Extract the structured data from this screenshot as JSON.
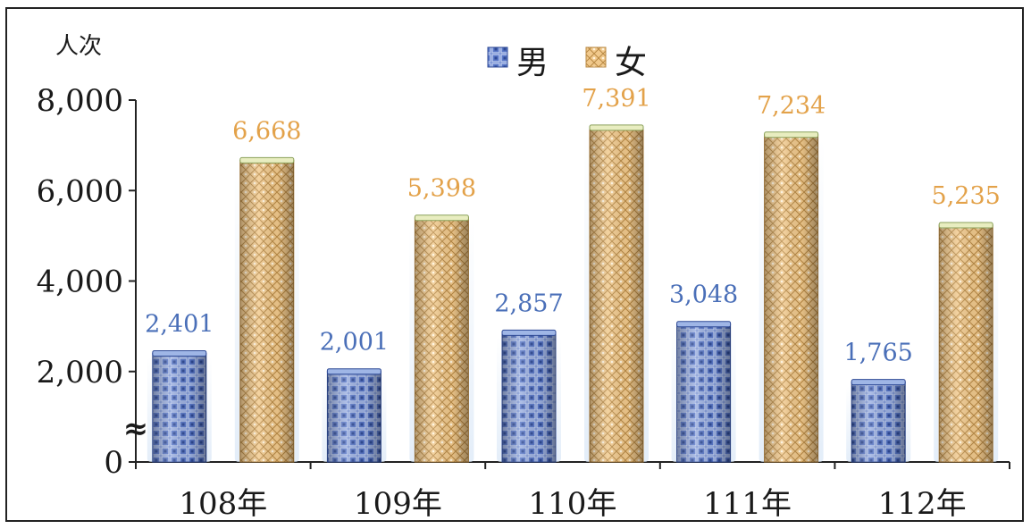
{
  "chart_data": {
    "type": "bar",
    "title": "",
    "ylabel": "人次",
    "xlabel": "",
    "categories": [
      "108年",
      "109年",
      "110年",
      "111年",
      "112年"
    ],
    "series": [
      {
        "name": "男",
        "values": [
          2401,
          2001,
          2857,
          3048,
          1765
        ],
        "labels": [
          "2,401",
          "2,001",
          "2,857",
          "3,048",
          "1,765"
        ],
        "color": "#4f6fc4"
      },
      {
        "name": "女",
        "values": [
          6668,
          5398,
          7391,
          7234,
          5235
        ],
        "labels": [
          "6,668",
          "5,398",
          "7,391",
          "7,234",
          "5,235"
        ],
        "color": "#e9b36a"
      }
    ],
    "ylim": [
      0,
      8000
    ],
    "yticks": [
      {
        "value": 0,
        "label": "0"
      },
      {
        "value": 2000,
        "label": "2,000"
      },
      {
        "value": 4000,
        "label": "4,000"
      },
      {
        "value": 6000,
        "label": "6,000"
      },
      {
        "value": 8000,
        "label": "8,000"
      }
    ],
    "axis_break": "≈",
    "legend_position": "top-center",
    "grid": false
  }
}
